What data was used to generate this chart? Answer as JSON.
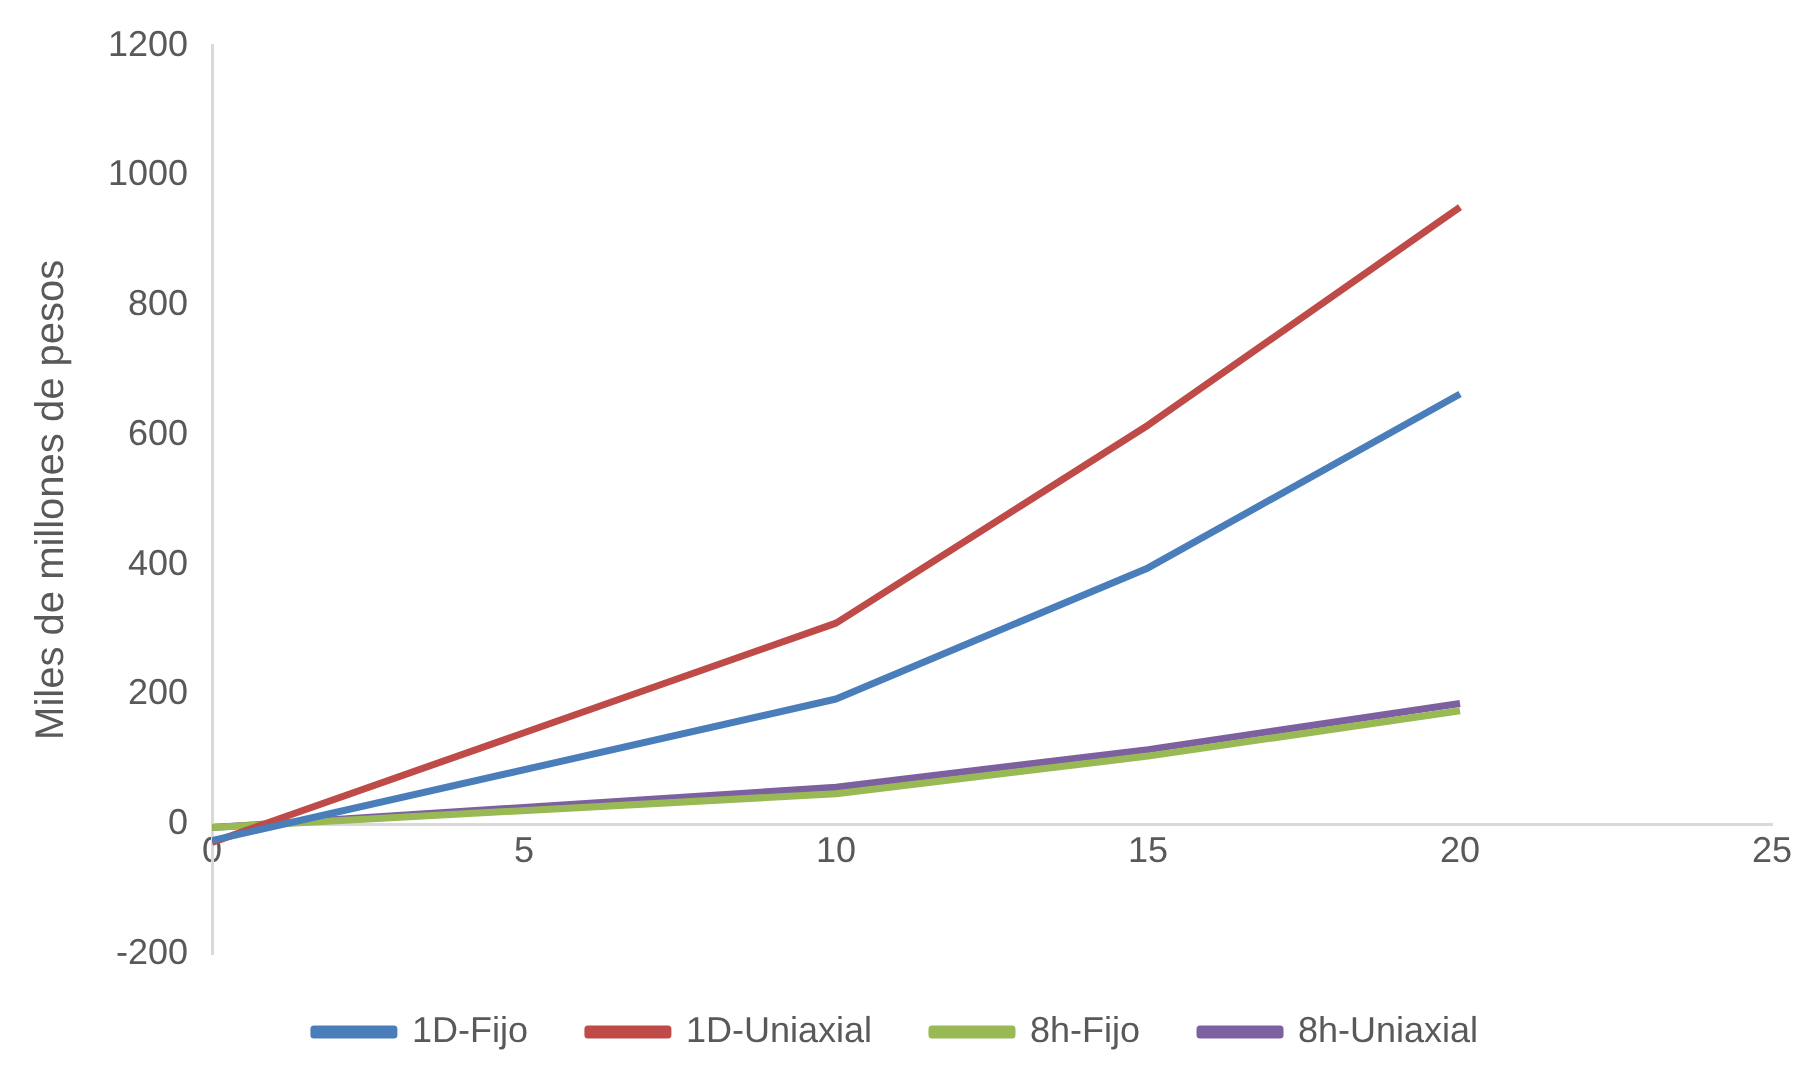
{
  "chart_data": {
    "type": "line",
    "ylabel": "Miles de millones de pesos",
    "x": [
      0,
      10,
      15,
      20
    ],
    "series": [
      {
        "name": "1D-Fijo",
        "color": "#4a7ebb",
        "values": [
          -25,
          193,
          395,
          663
        ]
      },
      {
        "name": "1D-Uniaxial",
        "color": "#be4b48",
        "values": [
          -28,
          310,
          615,
          951
        ]
      },
      {
        "name": "8h-Fijo",
        "color": "#98b954",
        "values": [
          -5,
          47,
          105,
          175
        ]
      },
      {
        "name": "8h-Uniaxial",
        "color": "#7d60a0",
        "values": [
          -5,
          57,
          115,
          186
        ]
      }
    ],
    "xlim": [
      0,
      25
    ],
    "xticks": [
      0,
      5,
      10,
      15,
      20,
      25
    ],
    "ylim": [
      -200,
      1200
    ],
    "yticks": [
      -200,
      0,
      200,
      400,
      600,
      800,
      1000,
      1200
    ],
    "grid": false,
    "legend": "bottom",
    "marker": "none",
    "line_style": "solid"
  }
}
